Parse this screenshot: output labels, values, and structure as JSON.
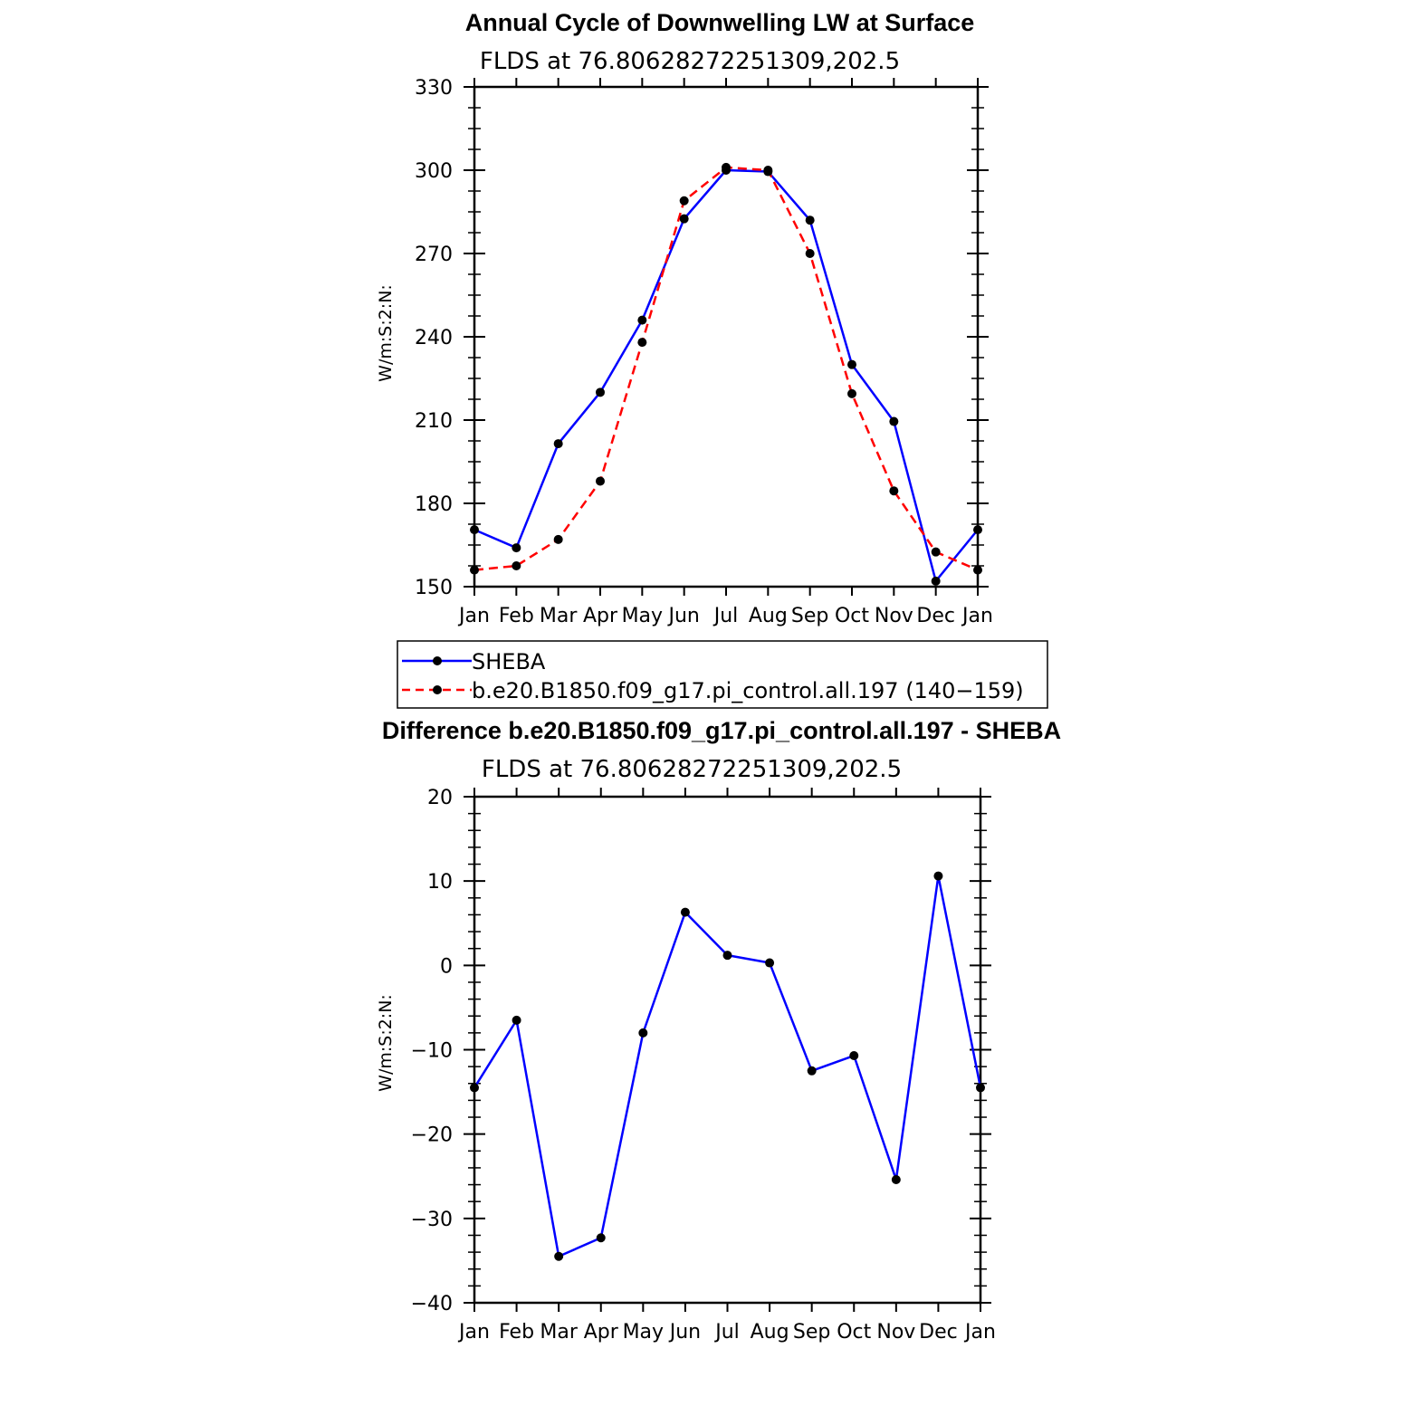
{
  "chart_data": [
    {
      "type": "line",
      "title": "Annual Cycle of Downwelling LW at Surface",
      "subtitle": "FLDS at 76.80628272251309,202.5",
      "ylabel": "W/m:S:2:N:",
      "categories": [
        "Jan",
        "Feb",
        "Mar",
        "Apr",
        "May",
        "Jun",
        "Jul",
        "Aug",
        "Sep",
        "Oct",
        "Nov",
        "Dec",
        "Jan"
      ],
      "ylim": [
        150,
        330
      ],
      "yticks": [
        "150",
        "180",
        "210",
        "240",
        "270",
        "300",
        "330"
      ],
      "grid": false,
      "legend_position": "bottom",
      "series": [
        {
          "name": "SHEBA",
          "color": "#0000ff",
          "dash": "solid",
          "values": [
            170.5,
            164,
            201.5,
            220,
            246,
            282.5,
            300,
            299.5,
            282,
            230,
            209.5,
            152,
            170.5
          ]
        },
        {
          "name": "b.e20.B1850.f09_g17.pi_control.all.197 (140−159)",
          "color": "#ff0000",
          "dash": "dashed",
          "values": [
            156,
            157.5,
            167,
            188,
            238,
            289,
            301,
            300,
            270,
            219.5,
            184.5,
            162.5,
            156
          ]
        }
      ]
    },
    {
      "type": "line",
      "title": "Difference b.e20.B1850.f09_g17.pi_control.all.197 - SHEBA",
      "subtitle": "FLDS at 76.80628272251309,202.5",
      "ylabel": "W/m:S:2:N:",
      "categories": [
        "Jan",
        "Feb",
        "Mar",
        "Apr",
        "May",
        "Jun",
        "Jul",
        "Aug",
        "Sep",
        "Oct",
        "Nov",
        "Dec",
        "Jan"
      ],
      "ylim": [
        -40,
        20
      ],
      "yticks": [
        "−40",
        "−30",
        "−20",
        "−10",
        "0",
        "10",
        "20"
      ],
      "grid": false,
      "series": [
        {
          "color": "#0000ff",
          "dash": "solid",
          "values": [
            -14.5,
            -6.5,
            -34.5,
            -32.3,
            -8,
            6.3,
            1.2,
            0.3,
            -12.5,
            -10.7,
            -25.4,
            10.6,
            -14.5
          ]
        }
      ]
    }
  ]
}
